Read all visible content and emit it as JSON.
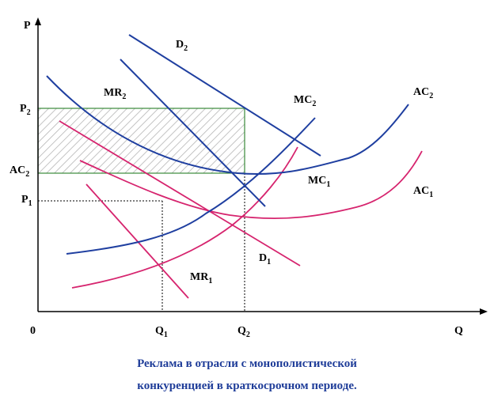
{
  "axes": {
    "y_label": "P",
    "x_label": "Q",
    "origin_label": "0"
  },
  "price_labels": {
    "p2": {
      "main": "P",
      "sub": "2"
    },
    "ac2": {
      "main": "AC",
      "sub": "2"
    },
    "p1": {
      "main": "P",
      "sub": "1"
    }
  },
  "quantity_labels": {
    "q1": {
      "main": "Q",
      "sub": "1"
    },
    "q2": {
      "main": "Q",
      "sub": "2"
    }
  },
  "curve_labels": {
    "d2": {
      "main": "D",
      "sub": "2"
    },
    "mr2": {
      "main": "MR",
      "sub": "2"
    },
    "mc2": {
      "main": "MC",
      "sub": "2"
    },
    "ac2": {
      "main": "AC",
      "sub": "2"
    },
    "mc1": {
      "main": "MC",
      "sub": "1"
    },
    "ac1": {
      "main": "AC",
      "sub": "1"
    },
    "d1": {
      "main": "D",
      "sub": "1"
    },
    "mr1": {
      "main": "MR",
      "sub": "1"
    }
  },
  "caption": {
    "line1": "Реклама в отрасли с монополистической",
    "line2": "конкуренцией в краткосрочном периоде."
  },
  "colors": {
    "blue_curves": "#1f3fa0",
    "pink_curves": "#d6246e",
    "profit_box": "#3a8a3a",
    "caption": "#1f3d99"
  }
}
